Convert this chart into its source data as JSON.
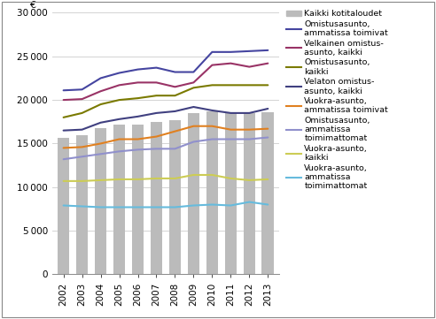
{
  "years": [
    2002,
    2003,
    2004,
    2005,
    2006,
    2007,
    2008,
    2009,
    2010,
    2011,
    2012,
    2013
  ],
  "bars": [
    15700,
    16000,
    16800,
    17200,
    17200,
    17500,
    17700,
    18500,
    18700,
    18500,
    18500,
    18600
  ],
  "series": {
    "omistus_amm": [
      21100,
      21200,
      22500,
      23100,
      23500,
      23700,
      23200,
      23200,
      25500,
      25500,
      25600,
      25700
    ],
    "velkainen_kaikki": [
      20000,
      20100,
      21000,
      21700,
      22000,
      22000,
      21500,
      22000,
      24000,
      24200,
      23800,
      24200
    ],
    "omistus_kaikki": [
      18000,
      18500,
      19500,
      20000,
      20200,
      20500,
      20500,
      21400,
      21700,
      21700,
      21700,
      21700
    ],
    "velaton_kaikki": [
      16500,
      16600,
      17400,
      17800,
      18100,
      18500,
      18700,
      19200,
      18800,
      18500,
      18500,
      19000
    ],
    "vuokra_amm": [
      14500,
      14600,
      15000,
      15500,
      15500,
      15800,
      16400,
      17000,
      17000,
      16600,
      16600,
      16700
    ],
    "omistus_toimimattomat": [
      13200,
      13500,
      13800,
      14100,
      14300,
      14400,
      14400,
      15200,
      15500,
      15500,
      15500,
      15700
    ],
    "vuokra_kaikki": [
      10700,
      10700,
      10800,
      10900,
      10900,
      11000,
      11000,
      11400,
      11400,
      11000,
      10800,
      10900
    ],
    "vuokra_toimimattomat": [
      7900,
      7800,
      7700,
      7700,
      7700,
      7700,
      7700,
      7900,
      8000,
      7900,
      8300,
      8000
    ]
  },
  "colors": {
    "omistus_amm": "#4545a0",
    "velkainen_kaikki": "#993366",
    "omistus_kaikki": "#7a7a00",
    "velaton_kaikki": "#404080",
    "vuokra_amm": "#e08020",
    "omistus_toimimattomat": "#9090cc",
    "vuokra_kaikki": "#cccc55",
    "vuokra_toimimattomat": "#66bbdd"
  },
  "bar_color": "#bbbbbb",
  "labels": {
    "omistus_amm": "Omistusasunto,\nammatissa toimivat",
    "velkainen_kaikki": "Velkainen omistus-\nasunto, kaikki",
    "omistus_kaikki": "Omistusasunto,\nkaikki",
    "velaton_kaikki": "Velaton omistus-\nasunto, kaikki",
    "vuokra_amm": "Vuokra-asunto,\nammatissa toimivat",
    "omistus_toimimattomat": "Omistusasunto,\nammatissa\ntoimimattomat",
    "vuokra_kaikki": "Vuokra-asunto,\nkaikki",
    "vuokra_toimimattomat": "Vuokra-asunto,\nammatissa\ntoimimattomat"
  },
  "bar_label": "Kaikki kotitaloudet",
  "ylim": [
    0,
    30000
  ],
  "yticks": [
    0,
    5000,
    10000,
    15000,
    20000,
    25000,
    30000
  ],
  "ylabel": "€",
  "background_color": "#ffffff",
  "figsize": [
    4.92,
    3.61
  ],
  "dpi": 100
}
